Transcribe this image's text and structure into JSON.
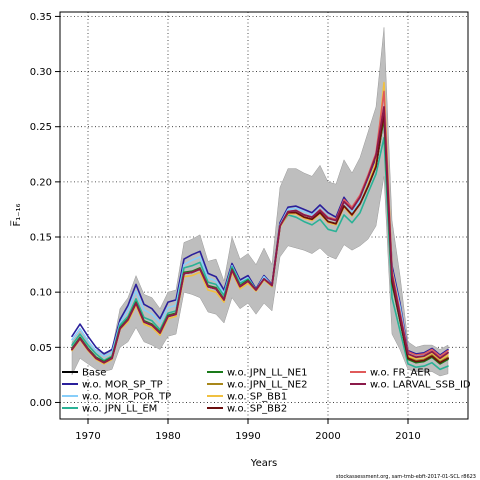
{
  "chart_data": {
    "type": "line",
    "title": "",
    "xlabel": "Years",
    "ylabel": "F̅₁₋₁₆",
    "xlim": [
      1966.5,
      2017.5
    ],
    "ylim": [
      -0.015,
      0.354
    ],
    "xticks": [
      1970,
      1980,
      1990,
      2000,
      2010
    ],
    "yticks": [
      0.0,
      0.05,
      0.1,
      0.15,
      0.2,
      0.25,
      0.3,
      0.35
    ],
    "ytick_labels": [
      "0.00",
      "0.05",
      "0.10",
      "0.15",
      "0.20",
      "0.25",
      "0.30",
      "0.35"
    ],
    "grid": true,
    "legend_position": "bottom",
    "source_note": "stockassessment.org, sam-tmb-ebft-2017-01-SCL r8623",
    "x": [
      1968,
      1969,
      1970,
      1971,
      1972,
      1973,
      1974,
      1975,
      1976,
      1977,
      1978,
      1979,
      1980,
      1981,
      1982,
      1983,
      1984,
      1985,
      1986,
      1987,
      1988,
      1989,
      1990,
      1991,
      1992,
      1993,
      1994,
      1995,
      1996,
      1997,
      1998,
      1999,
      2000,
      2001,
      2002,
      2003,
      2004,
      2005,
      2006,
      2007,
      2008,
      2009,
      2010,
      2011,
      2012,
      2013,
      2014,
      2015
    ],
    "confidence_band": {
      "color": "#bebebe",
      "upper": [
        0.055,
        0.065,
        0.055,
        0.048,
        0.045,
        0.048,
        0.085,
        0.095,
        0.115,
        0.098,
        0.095,
        0.085,
        0.1,
        0.102,
        0.145,
        0.148,
        0.152,
        0.128,
        0.13,
        0.11,
        0.15,
        0.13,
        0.135,
        0.125,
        0.14,
        0.125,
        0.195,
        0.212,
        0.212,
        0.208,
        0.205,
        0.215,
        0.2,
        0.198,
        0.22,
        0.208,
        0.222,
        0.245,
        0.268,
        0.34,
        0.165,
        0.115,
        0.055,
        0.05,
        0.052,
        0.052,
        0.048,
        0.052
      ],
      "lower": [
        0.025,
        0.04,
        0.035,
        0.03,
        0.028,
        0.03,
        0.05,
        0.055,
        0.068,
        0.055,
        0.052,
        0.048,
        0.06,
        0.062,
        0.1,
        0.098,
        0.095,
        0.082,
        0.08,
        0.072,
        0.095,
        0.085,
        0.09,
        0.08,
        0.09,
        0.083,
        0.132,
        0.142,
        0.14,
        0.138,
        0.135,
        0.14,
        0.133,
        0.13,
        0.143,
        0.138,
        0.142,
        0.148,
        0.16,
        0.205,
        0.062,
        0.048,
        0.03,
        0.028,
        0.028,
        0.028,
        0.024,
        0.026
      ]
    },
    "series": [
      {
        "name": "Base",
        "color": "#000000",
        "width": 1.8,
        "values": [
          0.048,
          0.058,
          0.048,
          0.04,
          0.036,
          0.04,
          0.067,
          0.075,
          0.09,
          0.073,
          0.07,
          0.063,
          0.078,
          0.08,
          0.117,
          0.118,
          0.121,
          0.105,
          0.103,
          0.093,
          0.12,
          0.105,
          0.11,
          0.102,
          0.112,
          0.106,
          0.16,
          0.172,
          0.172,
          0.168,
          0.166,
          0.172,
          0.164,
          0.162,
          0.178,
          0.17,
          0.18,
          0.196,
          0.214,
          0.26,
          0.11,
          0.075,
          0.04,
          0.037,
          0.038,
          0.042,
          0.036,
          0.04
        ]
      },
      {
        "name": "w.o. MOR_SP_TP",
        "color": "#2a1f9b",
        "width": 1.6,
        "values": [
          0.06,
          0.071,
          0.06,
          0.05,
          0.044,
          0.048,
          0.075,
          0.088,
          0.107,
          0.089,
          0.085,
          0.076,
          0.091,
          0.093,
          0.13,
          0.134,
          0.137,
          0.117,
          0.114,
          0.102,
          0.126,
          0.111,
          0.115,
          0.103,
          0.115,
          0.107,
          0.163,
          0.177,
          0.178,
          0.175,
          0.172,
          0.179,
          0.172,
          0.168,
          0.186,
          0.176,
          0.186,
          0.203,
          0.222,
          0.262,
          0.124,
          0.09,
          0.047,
          0.044,
          0.045,
          0.049,
          0.043,
          0.048
        ]
      },
      {
        "name": "w.o. MOR_POR_TP",
        "color": "#87cefa",
        "width": 1.6,
        "values": [
          0.057,
          0.067,
          0.056,
          0.047,
          0.042,
          0.045,
          0.072,
          0.084,
          0.101,
          0.084,
          0.08,
          0.072,
          0.086,
          0.088,
          0.125,
          0.129,
          0.132,
          0.113,
          0.11,
          0.099,
          0.124,
          0.109,
          0.113,
          0.102,
          0.114,
          0.106,
          0.161,
          0.175,
          0.176,
          0.173,
          0.17,
          0.176,
          0.169,
          0.165,
          0.182,
          0.173,
          0.183,
          0.2,
          0.218,
          0.258,
          0.12,
          0.087,
          0.045,
          0.042,
          0.043,
          0.047,
          0.041,
          0.046
        ]
      },
      {
        "name": "w.o. JPN_LL_EM",
        "color": "#2ab296",
        "width": 1.6,
        "values": [
          0.052,
          0.062,
          0.052,
          0.044,
          0.038,
          0.042,
          0.07,
          0.078,
          0.094,
          0.077,
          0.074,
          0.066,
          0.081,
          0.083,
          0.122,
          0.124,
          0.127,
          0.109,
          0.107,
          0.097,
          0.123,
          0.108,
          0.112,
          0.102,
          0.112,
          0.105,
          0.16,
          0.17,
          0.168,
          0.164,
          0.161,
          0.166,
          0.157,
          0.155,
          0.17,
          0.163,
          0.172,
          0.19,
          0.207,
          0.24,
          0.095,
          0.065,
          0.035,
          0.032,
          0.033,
          0.036,
          0.03,
          0.033
        ]
      },
      {
        "name": "w.o. JPN_LL_NE1",
        "color": "#1a7a1a",
        "width": 1.6,
        "values": [
          0.049,
          0.059,
          0.049,
          0.041,
          0.037,
          0.041,
          0.068,
          0.076,
          0.091,
          0.074,
          0.071,
          0.064,
          0.079,
          0.081,
          0.118,
          0.119,
          0.122,
          0.106,
          0.104,
          0.094,
          0.121,
          0.106,
          0.111,
          0.102,
          0.112,
          0.106,
          0.16,
          0.172,
          0.172,
          0.168,
          0.166,
          0.172,
          0.164,
          0.162,
          0.178,
          0.17,
          0.18,
          0.196,
          0.214,
          0.258,
          0.108,
          0.074,
          0.039,
          0.036,
          0.037,
          0.041,
          0.035,
          0.039
        ]
      },
      {
        "name": "w.o. JPN_LL_NE2",
        "color": "#a8871a",
        "width": 1.6,
        "values": [
          0.048,
          0.058,
          0.048,
          0.04,
          0.036,
          0.04,
          0.067,
          0.075,
          0.09,
          0.073,
          0.07,
          0.063,
          0.078,
          0.08,
          0.117,
          0.118,
          0.121,
          0.105,
          0.103,
          0.093,
          0.12,
          0.105,
          0.11,
          0.102,
          0.112,
          0.106,
          0.16,
          0.172,
          0.172,
          0.168,
          0.166,
          0.172,
          0.164,
          0.162,
          0.178,
          0.17,
          0.18,
          0.196,
          0.214,
          0.262,
          0.112,
          0.076,
          0.041,
          0.038,
          0.039,
          0.043,
          0.037,
          0.041
        ]
      },
      {
        "name": "w.o. SP_BB1",
        "color": "#f0c040",
        "width": 1.6,
        "values": [
          0.047,
          0.057,
          0.047,
          0.039,
          0.035,
          0.039,
          0.066,
          0.073,
          0.088,
          0.071,
          0.068,
          0.061,
          0.076,
          0.078,
          0.114,
          0.115,
          0.118,
          0.102,
          0.1,
          0.091,
          0.118,
          0.103,
          0.108,
          0.101,
          0.111,
          0.105,
          0.159,
          0.171,
          0.171,
          0.167,
          0.165,
          0.171,
          0.163,
          0.161,
          0.177,
          0.169,
          0.18,
          0.198,
          0.218,
          0.29,
          0.12,
          0.082,
          0.042,
          0.04,
          0.041,
          0.045,
          0.039,
          0.043
        ]
      },
      {
        "name": "w.o. SP_BB2",
        "color": "#6b0d0d",
        "width": 1.6,
        "values": [
          0.048,
          0.058,
          0.048,
          0.04,
          0.036,
          0.04,
          0.067,
          0.075,
          0.09,
          0.073,
          0.07,
          0.063,
          0.078,
          0.08,
          0.117,
          0.118,
          0.121,
          0.105,
          0.103,
          0.093,
          0.12,
          0.105,
          0.11,
          0.102,
          0.112,
          0.106,
          0.16,
          0.172,
          0.172,
          0.168,
          0.166,
          0.172,
          0.164,
          0.162,
          0.178,
          0.17,
          0.18,
          0.196,
          0.214,
          0.262,
          0.11,
          0.075,
          0.04,
          0.037,
          0.038,
          0.042,
          0.036,
          0.04
        ]
      },
      {
        "name": "w.o. FR_AER",
        "color": "#e05a5a",
        "width": 1.6,
        "values": [
          0.048,
          0.058,
          0.048,
          0.04,
          0.036,
          0.04,
          0.067,
          0.075,
          0.09,
          0.073,
          0.07,
          0.063,
          0.078,
          0.08,
          0.117,
          0.118,
          0.121,
          0.105,
          0.103,
          0.093,
          0.12,
          0.105,
          0.11,
          0.102,
          0.112,
          0.106,
          0.16,
          0.173,
          0.174,
          0.17,
          0.168,
          0.175,
          0.168,
          0.166,
          0.184,
          0.177,
          0.188,
          0.206,
          0.226,
          0.282,
          0.118,
          0.082,
          0.046,
          0.043,
          0.044,
          0.048,
          0.042,
          0.047
        ]
      },
      {
        "name": "w.o. LARVAL_SSB_ID",
        "color": "#8b1a4a",
        "width": 1.8,
        "values": [
          0.048,
          0.058,
          0.048,
          0.04,
          0.036,
          0.04,
          0.067,
          0.075,
          0.09,
          0.073,
          0.07,
          0.063,
          0.078,
          0.08,
          0.117,
          0.118,
          0.121,
          0.105,
          0.103,
          0.093,
          0.12,
          0.105,
          0.11,
          0.102,
          0.112,
          0.106,
          0.16,
          0.173,
          0.174,
          0.17,
          0.168,
          0.174,
          0.167,
          0.165,
          0.182,
          0.175,
          0.186,
          0.204,
          0.224,
          0.268,
          0.115,
          0.079,
          0.044,
          0.041,
          0.042,
          0.046,
          0.04,
          0.045
        ]
      }
    ],
    "legend_columns": [
      [
        "Base",
        "w.o. MOR_SP_TP",
        "w.o. MOR_POR_TP",
        "w.o. JPN_LL_EM"
      ],
      [
        "w.o. JPN_LL_NE1",
        "w.o. JPN_LL_NE2",
        "w.o. SP_BB1",
        "w.o. SP_BB2"
      ],
      [
        "w.o. FR_AER",
        "w.o. LARVAL_SSB_ID"
      ]
    ]
  }
}
